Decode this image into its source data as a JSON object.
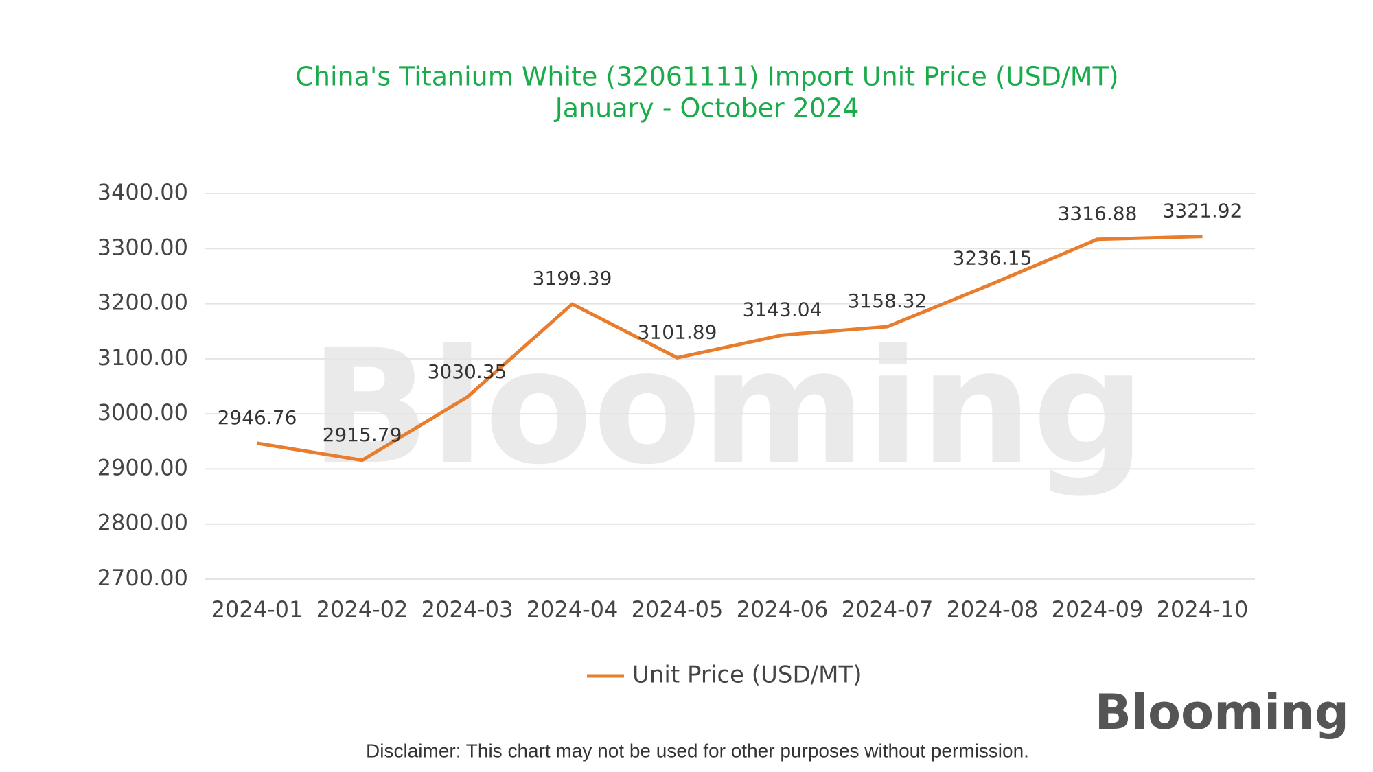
{
  "chart_data": {
    "type": "line",
    "title": "China's Titanium White (32061111) Import Unit Price (USD/MT)",
    "subtitle": "January - October 2024",
    "categories": [
      "2024-01",
      "2024-02",
      "2024-03",
      "2024-04",
      "2024-05",
      "2024-06",
      "2024-07",
      "2024-08",
      "2024-09",
      "2024-10"
    ],
    "series": [
      {
        "name": "Unit Price (USD/MT)",
        "color": "#e87d2e",
        "values": [
          2946.76,
          2915.79,
          3030.35,
          3199.39,
          3101.89,
          3143.04,
          3158.32,
          3236.15,
          3316.88,
          3321.92
        ]
      }
    ],
    "ylim": [
      2700,
      3400
    ],
    "yticks": [
      {
        "value": 2700,
        "label": "2700.00"
      },
      {
        "value": 2800,
        "label": "2800.00"
      },
      {
        "value": 2900,
        "label": "2900.00"
      },
      {
        "value": 3000,
        "label": "3000.00"
      },
      {
        "value": 3100,
        "label": "3100.00"
      },
      {
        "value": 3200,
        "label": "3200.00"
      },
      {
        "value": 3300,
        "label": "3300.00"
      },
      {
        "value": 3400,
        "label": "3400.00"
      }
    ],
    "grid": true,
    "legend": "bottom"
  },
  "brand": "Blooming",
  "disclaimer": "Disclaimer: This chart may not be used for other purposes without permission."
}
